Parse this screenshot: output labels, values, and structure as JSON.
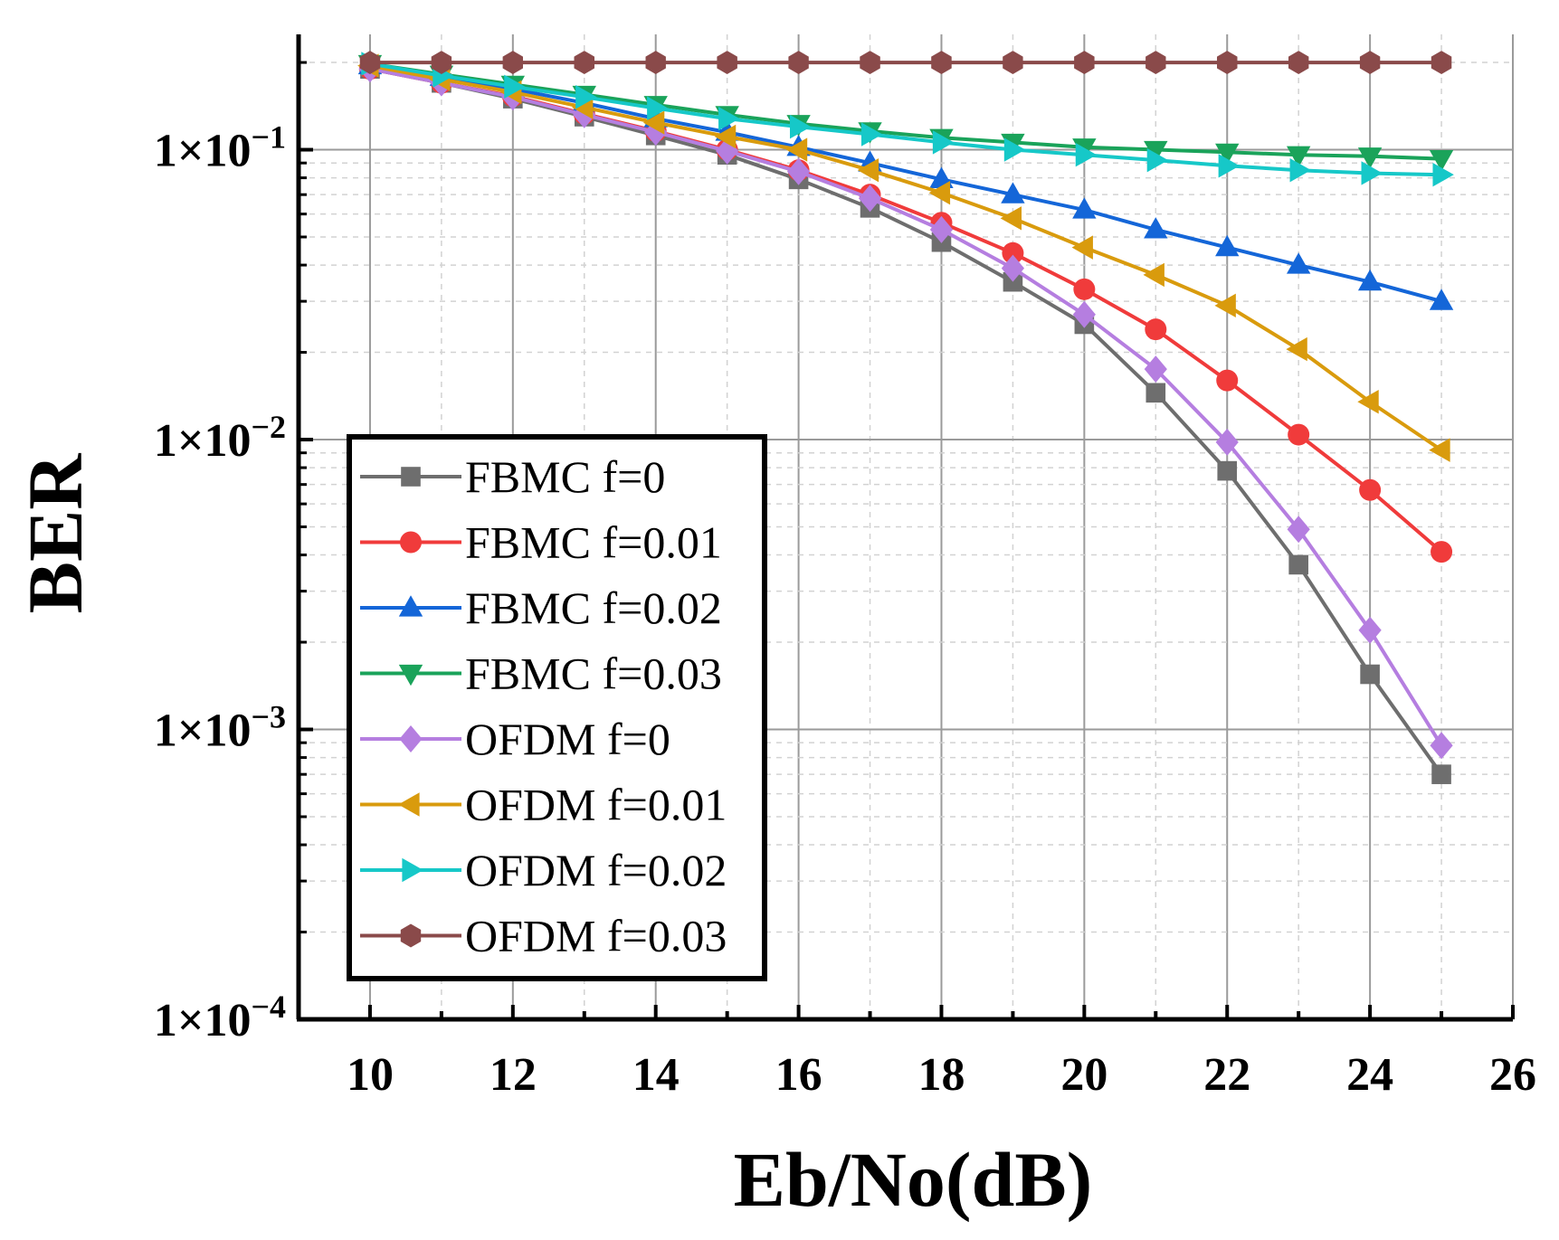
{
  "chart_data": {
    "type": "line",
    "title": "",
    "xlabel": "Eb/No(dB)",
    "ylabel": "BER",
    "xlim": [
      9,
      26
    ],
    "ylim": [
      0.0001,
      0.25
    ],
    "yscale": "log",
    "grid": true,
    "legend_position": "bottom-left",
    "xticks": [
      10,
      12,
      14,
      16,
      18,
      20,
      22,
      24,
      26
    ],
    "yticks": [
      {
        "value": 0.1,
        "mantissa": "1×10",
        "exp": "−1"
      },
      {
        "value": 0.01,
        "mantissa": "1×10",
        "exp": "−2"
      },
      {
        "value": 0.001,
        "mantissa": "1×10",
        "exp": "−3"
      },
      {
        "value": 0.0001,
        "mantissa": "1×10",
        "exp": "−4"
      }
    ],
    "x": [
      10,
      11,
      12,
      13,
      14,
      15,
      16,
      17,
      18,
      19,
      20,
      21,
      22,
      23,
      24,
      25
    ],
    "series": [
      {
        "name": "FBMC f=0",
        "color": "#6e6e6e",
        "marker": "square",
        "values": [
          0.19,
          0.17,
          0.15,
          0.13,
          0.112,
          0.096,
          0.079,
          0.063,
          0.048,
          0.035,
          0.025,
          0.0145,
          0.0078,
          0.0037,
          0.00155,
          0.0007
        ]
      },
      {
        "name": "FBMC f=0.01",
        "color": "#f03b3b",
        "marker": "circle",
        "values": [
          0.19,
          0.17,
          0.153,
          0.133,
          0.116,
          0.1,
          0.085,
          0.07,
          0.056,
          0.044,
          0.033,
          0.024,
          0.016,
          0.0104,
          0.0067,
          0.0041
        ]
      },
      {
        "name": "FBMC f=0.02",
        "color": "#1466d8",
        "marker": "triangle-up",
        "values": [
          0.195,
          0.178,
          0.162,
          0.145,
          0.128,
          0.115,
          0.102,
          0.09,
          0.079,
          0.07,
          0.062,
          0.053,
          0.046,
          0.04,
          0.035,
          0.03
        ]
      },
      {
        "name": "FBMC f=0.03",
        "color": "#1aa35a",
        "marker": "triangle-down",
        "values": [
          0.198,
          0.182,
          0.168,
          0.155,
          0.143,
          0.132,
          0.123,
          0.116,
          0.11,
          0.106,
          0.102,
          0.1,
          0.098,
          0.096,
          0.095,
          0.093
        ]
      },
      {
        "name": "OFDM f=0",
        "color": "#b57ee0",
        "marker": "diamond",
        "values": [
          0.19,
          0.17,
          0.152,
          0.132,
          0.115,
          0.099,
          0.084,
          0.068,
          0.053,
          0.039,
          0.027,
          0.0175,
          0.0098,
          0.0049,
          0.0022,
          0.00088
        ]
      },
      {
        "name": "OFDM f=0.01",
        "color": "#d99b0d",
        "marker": "triangle-left",
        "values": [
          0.195,
          0.175,
          0.158,
          0.14,
          0.124,
          0.111,
          0.1,
          0.085,
          0.071,
          0.058,
          0.046,
          0.037,
          0.029,
          0.0205,
          0.0135,
          0.0092
        ]
      },
      {
        "name": "OFDM f=0.02",
        "color": "#16c8c8",
        "marker": "triangle-right",
        "values": [
          0.198,
          0.18,
          0.165,
          0.152,
          0.139,
          0.128,
          0.12,
          0.113,
          0.106,
          0.1,
          0.096,
          0.092,
          0.088,
          0.085,
          0.083,
          0.082
        ]
      },
      {
        "name": "OFDM f=0.03",
        "color": "#8a4a4a",
        "marker": "hexagon",
        "values": [
          0.2,
          0.2,
          0.2,
          0.2,
          0.2,
          0.2,
          0.2,
          0.2,
          0.2,
          0.2,
          0.2,
          0.2,
          0.2,
          0.2,
          0.2,
          0.2
        ]
      }
    ]
  }
}
